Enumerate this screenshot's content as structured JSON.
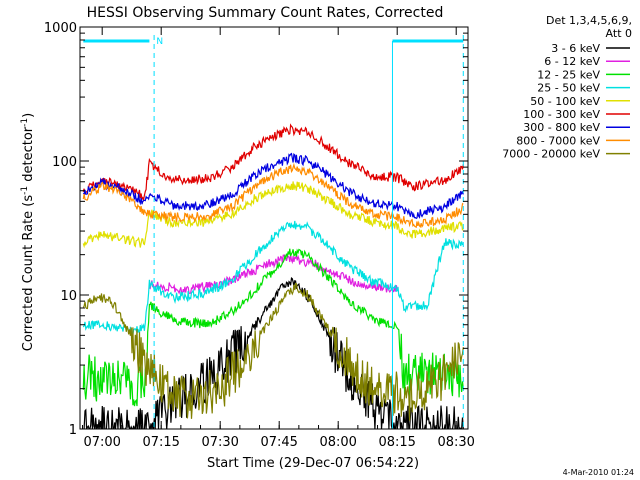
{
  "chart_data": {
    "type": "line",
    "title": "HESSI Observing Summary Count Rates, Corrected",
    "xlabel": "Start Time (29-Dec-07 06:54:22)",
    "ylabel": "Corrected Count Rate (s⁻¹ detector⁻¹)",
    "ylabel_main": "Corrected Count Rate (s",
    "ylabel_sup1": "-1",
    "ylabel_mid": " detector",
    "ylabel_sup2": "-1",
    "ylabel_end": ")",
    "yscale": "log",
    "xlim": [
      6.906,
      8.55
    ],
    "ylim": [
      1,
      1000
    ],
    "x_ticks": [
      {
        "t": 7.0,
        "label": "07:00"
      },
      {
        "t": 7.25,
        "label": "07:15"
      },
      {
        "t": 7.5,
        "label": "07:30"
      },
      {
        "t": 7.75,
        "label": "07:45"
      },
      {
        "t": 8.0,
        "label": "08:00"
      },
      {
        "t": 8.25,
        "label": "08:15"
      },
      {
        "t": 8.5,
        "label": "08:30"
      }
    ],
    "y_ticks": [
      {
        "v": 1,
        "label": "1"
      },
      {
        "v": 10,
        "label": "10"
      },
      {
        "v": 100,
        "label": "100"
      },
      {
        "v": 1000,
        "label": "1000"
      }
    ],
    "legend": {
      "header_line1": "Det 1,3,4,5,6,9,",
      "header_line2": "Att 0",
      "placement": "right"
    },
    "series": [
      {
        "name": "3 - 6 keV",
        "color": "#000000",
        "points": [
          [
            6.92,
            1.0
          ],
          [
            7.1,
            1.0
          ],
          [
            7.2,
            1.0
          ],
          [
            7.3,
            1.5
          ],
          [
            7.4,
            2.0
          ],
          [
            7.5,
            2.8
          ],
          [
            7.6,
            4.5
          ],
          [
            7.7,
            8.0
          ],
          [
            7.75,
            11.0
          ],
          [
            7.8,
            12.5
          ],
          [
            7.85,
            11.0
          ],
          [
            7.9,
            8.0
          ],
          [
            8.0,
            3.5
          ],
          [
            8.1,
            1.8
          ],
          [
            8.2,
            1.2
          ],
          [
            8.3,
            1.0
          ],
          [
            8.45,
            1.0
          ],
          [
            8.53,
            1.0
          ]
        ]
      },
      {
        "name": "6 - 12 keV",
        "color": "#e020e0",
        "points": [
          [
            7.2,
            12.0
          ],
          [
            7.35,
            11.0
          ],
          [
            7.5,
            12.0
          ],
          [
            7.6,
            14.0
          ],
          [
            7.7,
            17.0
          ],
          [
            7.8,
            19.0
          ],
          [
            7.9,
            17.0
          ],
          [
            8.0,
            14.0
          ],
          [
            8.1,
            12.0
          ],
          [
            8.25,
            11.0
          ]
        ]
      },
      {
        "name": "12 - 25 keV",
        "color": "#00e000",
        "points": [
          [
            6.92,
            2.5
          ],
          [
            7.0,
            2.3
          ],
          [
            7.1,
            2.2
          ],
          [
            7.18,
            2.0
          ],
          [
            7.2,
            8.5
          ],
          [
            7.3,
            6.5
          ],
          [
            7.45,
            6.0
          ],
          [
            7.55,
            7.5
          ],
          [
            7.65,
            11.0
          ],
          [
            7.75,
            17.0
          ],
          [
            7.8,
            21.0
          ],
          [
            7.87,
            20.0
          ],
          [
            7.95,
            14.0
          ],
          [
            8.05,
            9.0
          ],
          [
            8.15,
            6.5
          ],
          [
            8.25,
            6.0
          ],
          [
            8.28,
            2.5
          ],
          [
            8.4,
            2.5
          ],
          [
            8.53,
            2.5
          ]
        ]
      },
      {
        "name": "25 - 50 keV",
        "color": "#00e0e0",
        "points": [
          [
            6.92,
            6.0
          ],
          [
            7.0,
            6.0
          ],
          [
            7.1,
            5.5
          ],
          [
            7.18,
            5.5
          ],
          [
            7.2,
            12.0
          ],
          [
            7.3,
            9.5
          ],
          [
            7.45,
            10.5
          ],
          [
            7.55,
            13.0
          ],
          [
            7.65,
            20.0
          ],
          [
            7.75,
            30.0
          ],
          [
            7.8,
            34.0
          ],
          [
            7.87,
            32.0
          ],
          [
            7.95,
            24.0
          ],
          [
            8.05,
            16.0
          ],
          [
            8.15,
            12.5
          ],
          [
            8.25,
            11.5
          ],
          [
            8.28,
            8.0
          ],
          [
            8.38,
            8.5
          ],
          [
            8.45,
            25.0
          ],
          [
            8.53,
            23.0
          ]
        ]
      },
      {
        "name": "50 - 100 keV",
        "color": "#e0e000",
        "points": [
          [
            6.92,
            25.0
          ],
          [
            7.0,
            28.0
          ],
          [
            7.1,
            26.0
          ],
          [
            7.18,
            24.0
          ],
          [
            7.2,
            42.0
          ],
          [
            7.3,
            34.0
          ],
          [
            7.45,
            35.0
          ],
          [
            7.55,
            40.0
          ],
          [
            7.65,
            53.0
          ],
          [
            7.75,
            62.0
          ],
          [
            7.8,
            66.0
          ],
          [
            7.87,
            63.0
          ],
          [
            7.95,
            52.0
          ],
          [
            8.05,
            40.0
          ],
          [
            8.15,
            35.0
          ],
          [
            8.25,
            33.0
          ],
          [
            8.28,
            28.0
          ],
          [
            8.4,
            30.0
          ],
          [
            8.53,
            33.0
          ]
        ]
      },
      {
        "name": "100 - 300 keV",
        "color": "#e00000",
        "points": [
          [
            6.92,
            60.0
          ],
          [
            7.0,
            72.0
          ],
          [
            7.08,
            66.0
          ],
          [
            7.18,
            55.0
          ],
          [
            7.2,
            95.0
          ],
          [
            7.3,
            72.0
          ],
          [
            7.45,
            74.0
          ],
          [
            7.55,
            90.0
          ],
          [
            7.65,
            130.0
          ],
          [
            7.75,
            160.0
          ],
          [
            7.8,
            172.0
          ],
          [
            7.87,
            165.0
          ],
          [
            7.95,
            130.0
          ],
          [
            8.05,
            95.0
          ],
          [
            8.15,
            78.0
          ],
          [
            8.25,
            75.0
          ],
          [
            8.32,
            65.0
          ],
          [
            8.45,
            72.0
          ],
          [
            8.53,
            90.0
          ]
        ]
      },
      {
        "name": "300 - 800 keV",
        "color": "#0000e0",
        "points": [
          [
            6.92,
            58.0
          ],
          [
            7.0,
            68.0
          ],
          [
            7.08,
            62.0
          ],
          [
            7.18,
            50.0
          ],
          [
            7.2,
            56.0
          ],
          [
            7.3,
            46.0
          ],
          [
            7.45,
            47.0
          ],
          [
            7.55,
            56.0
          ],
          [
            7.65,
            80.0
          ],
          [
            7.75,
            98.0
          ],
          [
            7.8,
            105.0
          ],
          [
            7.87,
            100.0
          ],
          [
            7.95,
            80.0
          ],
          [
            8.05,
            58.0
          ],
          [
            8.15,
            48.0
          ],
          [
            8.25,
            46.0
          ],
          [
            8.32,
            40.0
          ],
          [
            8.45,
            45.0
          ],
          [
            8.53,
            58.0
          ]
        ]
      },
      {
        "name": "800 - 7000 keV",
        "color": "#ff8c00",
        "points": [
          [
            6.92,
            52.0
          ],
          [
            7.0,
            65.0
          ],
          [
            7.08,
            58.0
          ],
          [
            7.18,
            42.0
          ],
          [
            7.2,
            40.0
          ],
          [
            7.3,
            38.0
          ],
          [
            7.45,
            39.0
          ],
          [
            7.55,
            46.0
          ],
          [
            7.65,
            65.0
          ],
          [
            7.75,
            82.0
          ],
          [
            7.8,
            88.0
          ],
          [
            7.87,
            84.0
          ],
          [
            7.95,
            66.0
          ],
          [
            8.05,
            48.0
          ],
          [
            8.15,
            40.0
          ],
          [
            8.25,
            38.0
          ],
          [
            8.32,
            34.0
          ],
          [
            8.45,
            36.0
          ],
          [
            8.53,
            45.0
          ]
        ]
      },
      {
        "name": "7000 - 20000 keV",
        "color": "#808000",
        "points": [
          [
            6.92,
            8.0
          ],
          [
            6.98,
            10.0
          ],
          [
            7.05,
            8.5
          ],
          [
            7.12,
            5.0
          ],
          [
            7.18,
            3.2
          ],
          [
            7.25,
            2.2
          ],
          [
            7.35,
            1.7
          ],
          [
            7.5,
            2.0
          ],
          [
            7.6,
            3.2
          ],
          [
            7.7,
            6.0
          ],
          [
            7.78,
            10.0
          ],
          [
            7.82,
            11.5
          ],
          [
            7.87,
            10.0
          ],
          [
            7.95,
            6.0
          ],
          [
            8.05,
            3.0
          ],
          [
            8.15,
            2.0
          ],
          [
            8.3,
            1.7
          ],
          [
            8.45,
            2.5
          ],
          [
            8.53,
            4.5
          ]
        ]
      }
    ],
    "flags": {
      "color": "#00e0ff",
      "n_label": "N",
      "top_bars": [
        [
          6.92,
          7.2
        ],
        [
          8.23,
          8.53
        ]
      ],
      "vertical_dashed": [
        7.22,
        8.53
      ],
      "vertical_solid": [
        8.23
      ]
    }
  },
  "footer": {
    "timestamp": "4-Mar-2010 01:24"
  }
}
